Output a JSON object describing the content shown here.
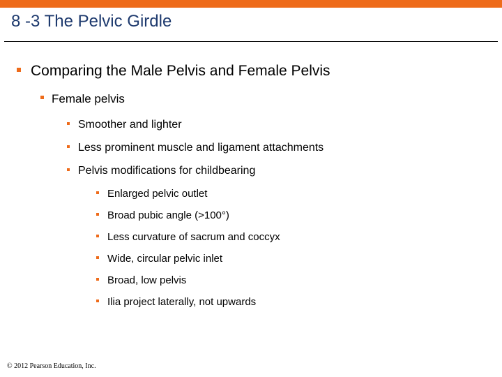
{
  "colors": {
    "accent": "#ee6b1a",
    "title_color": "#1e3a6e",
    "text_color": "#000000",
    "background": "#ffffff",
    "rule_color": "#000000"
  },
  "typography": {
    "title_fontsize": 24,
    "l1_fontsize": 21,
    "l2_fontsize": 17,
    "l3_fontsize": 16,
    "l4_fontsize": 15,
    "footer_fontsize": 10
  },
  "title": "8 -3 The Pelvic Girdle",
  "l1_text": "Comparing the Male Pelvis and Female Pelvis",
  "l2_text": "Female pelvis",
  "l3": {
    "a": "Smoother and lighter",
    "b": "Less prominent muscle and ligament attachments",
    "c": "Pelvis modifications for childbearing"
  },
  "l4": {
    "a": "Enlarged pelvic outlet",
    "b": "Broad pubic angle (>100°)",
    "c": "Less curvature of sacrum and coccyx",
    "d": "Wide, circular pelvic inlet",
    "e": "Broad, low pelvis",
    "f": "Ilia project laterally, not upwards"
  },
  "footer": "© 2012 Pearson Education, Inc."
}
